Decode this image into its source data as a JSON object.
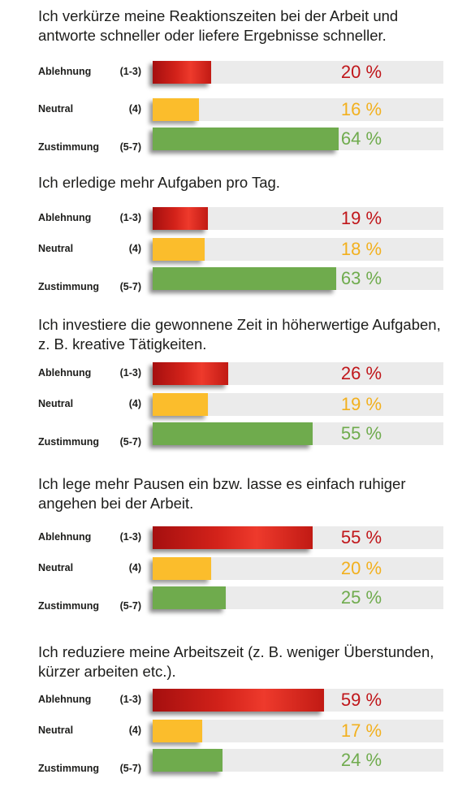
{
  "chart_data": [
    {
      "type": "bar",
      "title": "Ich verkürze meine Reaktionszeiten bei der Arbeit und antworte schneller oder liefere Ergebnisse schneller.",
      "categories": [
        "Ablehnung",
        "Neutral",
        "Zustimmung"
      ],
      "ranges": [
        "(1-3)",
        "(4)",
        "(5-7)"
      ],
      "values": [
        20,
        16,
        64
      ],
      "labels": [
        "20 %",
        "16 %",
        "64 %"
      ],
      "ylim": [
        0,
        100
      ]
    },
    {
      "type": "bar",
      "title": "Ich erledige mehr Aufgaben pro Tag.",
      "categories": [
        "Ablehnung",
        "Neutral",
        "Zustimmung"
      ],
      "ranges": [
        "(1-3)",
        "(4)",
        "(5-7)"
      ],
      "values": [
        19,
        18,
        63
      ],
      "labels": [
        "19 %",
        "18 %",
        "63 %"
      ],
      "ylim": [
        0,
        100
      ]
    },
    {
      "type": "bar",
      "title": "Ich investiere die gewonnene Zeit in höherwertige Aufgaben, z. B. kreative Tätigkeiten.",
      "categories": [
        "Ablehnung",
        "Neutral",
        "Zustimmung"
      ],
      "ranges": [
        "(1-3)",
        "(4)",
        "(5-7)"
      ],
      "values": [
        26,
        19,
        55
      ],
      "labels": [
        "26 %",
        "19 %",
        "55 %"
      ],
      "ylim": [
        0,
        100
      ]
    },
    {
      "type": "bar",
      "title": "Ich lege mehr Pausen ein bzw. lasse es einfach ruhiger angehen bei der Arbeit.",
      "categories": [
        "Ablehnung",
        "Neutral",
        "Zustimmung"
      ],
      "ranges": [
        "(1-3)",
        "(4)",
        "(5-7)"
      ],
      "values": [
        55,
        20,
        25
      ],
      "labels": [
        "55 %",
        "20 %",
        "25 %"
      ],
      "ylim": [
        0,
        100
      ]
    },
    {
      "type": "bar",
      "title": "Ich reduziere meine Arbeitszeit (z. B. weniger Überstunden, kürzer arbeiten etc.).",
      "categories": [
        "Ablehnung",
        "Neutral",
        "Zustimmung"
      ],
      "ranges": [
        "(1-3)",
        "(4)",
        "(5-7)"
      ],
      "values": [
        59,
        17,
        24
      ],
      "labels": [
        "59 %",
        "17 %",
        "24 %"
      ],
      "ylim": [
        0,
        100
      ]
    }
  ],
  "colors": {
    "ablehnung": "#c0161a",
    "neutral": "#fbbd2c",
    "zustimmung": "#6fab4d",
    "track": "#ebebeb"
  }
}
